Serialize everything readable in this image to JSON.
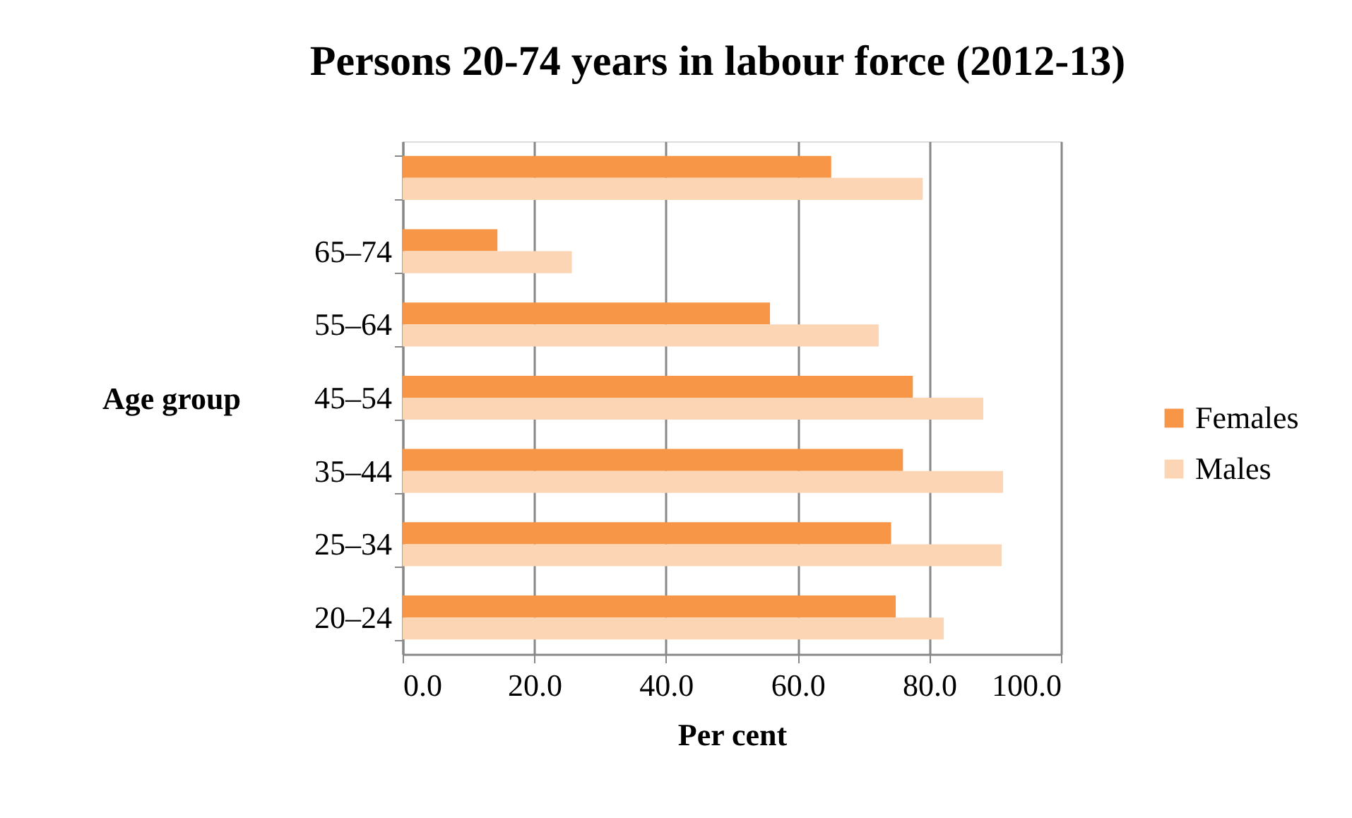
{
  "chart_data": {
    "type": "bar",
    "orientation": "horizontal",
    "title": "Persons 20-74 years in labour force (2012-13)",
    "xlabel": "Per cent",
    "ylabel": "Age group",
    "categories": [
      null,
      "65–74",
      "55–64",
      "45–54",
      "35–44",
      "25–34",
      "20–24"
    ],
    "series": [
      {
        "name": "Females",
        "color": "#f79646",
        "values": [
          65.1,
          14.4,
          55.8,
          77.5,
          76.0,
          74.2,
          74.9
        ]
      },
      {
        "name": "Males",
        "color": "#fcd5b5",
        "values": [
          79.0,
          25.7,
          72.3,
          88.2,
          91.2,
          91.0,
          82.2
        ]
      }
    ],
    "xlim": [
      0,
      100
    ],
    "xticks": [
      {
        "value": 0,
        "label": "0.0"
      },
      {
        "value": 20,
        "label": "20.0"
      },
      {
        "value": 40,
        "label": "40.0"
      },
      {
        "value": 60,
        "label": "60.0"
      },
      {
        "value": 80,
        "label": "80.0"
      },
      {
        "value": 100,
        "label": "100.0"
      }
    ],
    "grid": "x",
    "legend": "right"
  }
}
